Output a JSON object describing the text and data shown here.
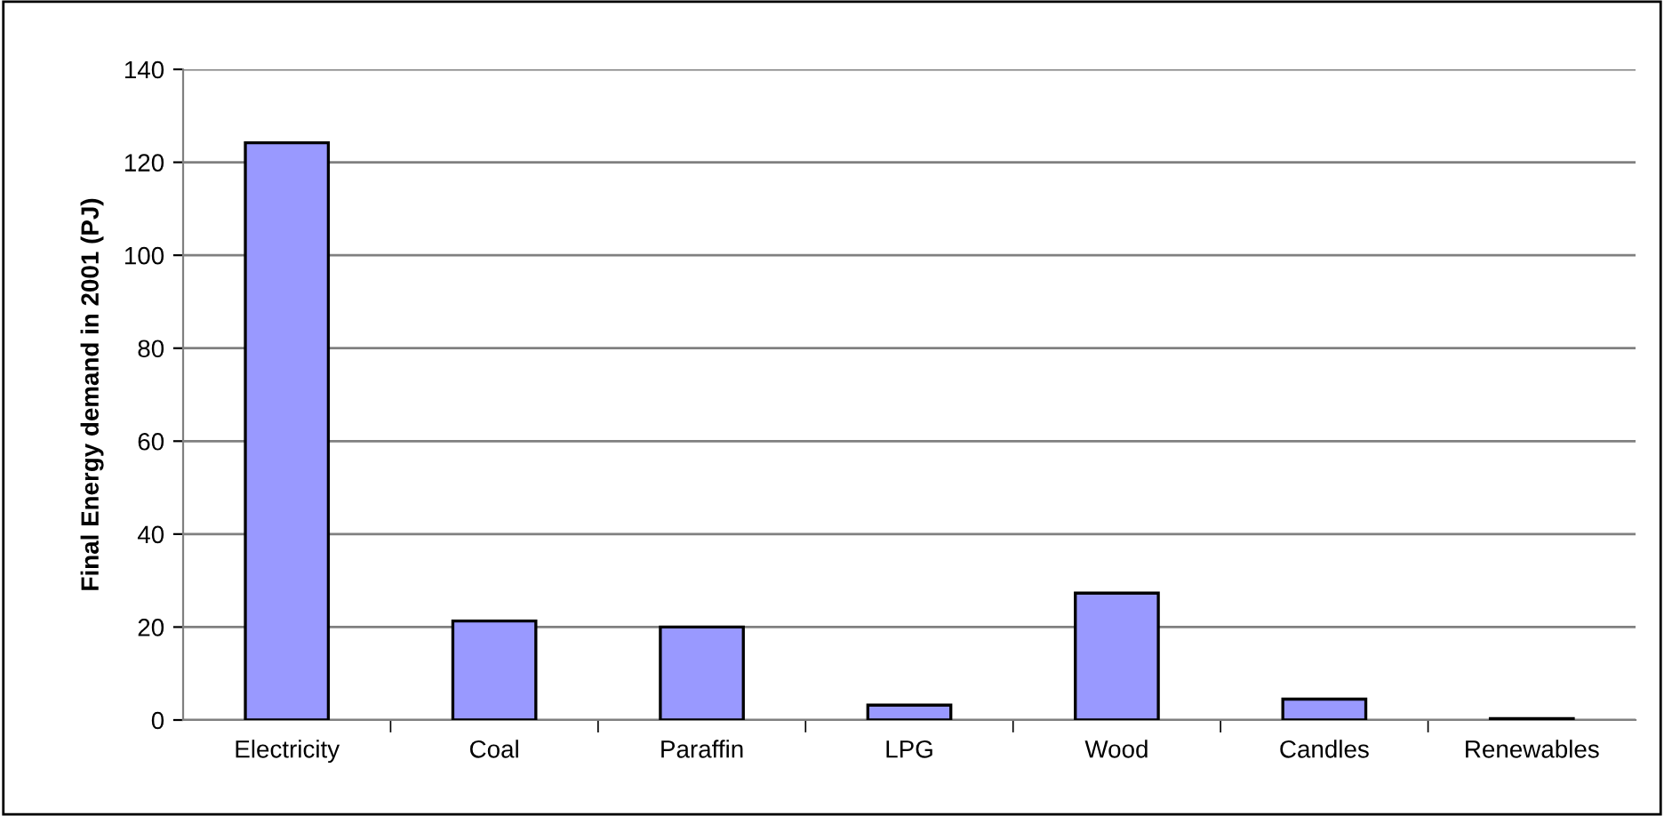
{
  "chart_data": {
    "type": "bar",
    "ylabel": "Final Energy demand in 2001 (PJ)",
    "categories": [
      "Electricity",
      "Coal",
      "Paraffin",
      "LPG",
      "Wood",
      "Candles",
      "Renewables"
    ],
    "values": [
      124.2,
      21.3,
      20.0,
      3.2,
      27.3,
      4.5,
      0.3
    ],
    "color": "#9999ff",
    "ylim": [
      0,
      140
    ],
    "yticks": [
      0,
      20,
      40,
      60,
      80,
      100,
      120,
      140
    ],
    "grid": "y",
    "legend": false
  }
}
